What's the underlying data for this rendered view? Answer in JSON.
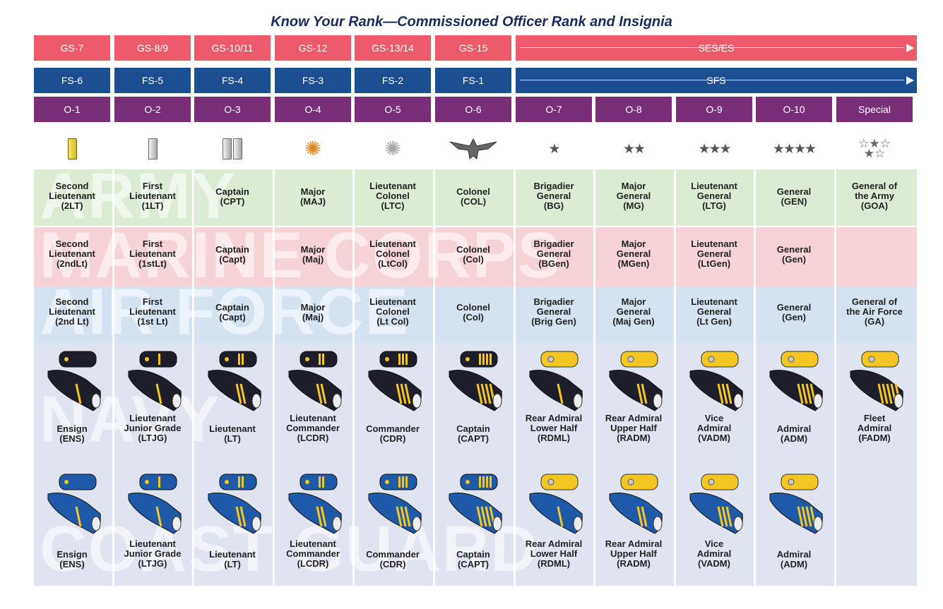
{
  "title": "Know Your Rank—Commissioned Officer Rank and Insignia",
  "gs": [
    "GS-7",
    "GS-8/9",
    "GS-10/11",
    "GS-12",
    "GS-13/14",
    "GS-15"
  ],
  "gs_span": "SES/ES",
  "fs": [
    "FS-6",
    "FS-5",
    "FS-4",
    "FS-3",
    "FS-2",
    "FS-1"
  ],
  "fs_span": "SFS",
  "o": [
    "O-1",
    "O-2",
    "O-3",
    "O-4",
    "O-5",
    "O-6",
    "O-7",
    "O-8",
    "O-9",
    "O-10",
    "Special"
  ],
  "insignia": [
    "gold-bar-icon",
    "silver-bar-icon",
    "double-silver-bar-icon",
    "gold-oak-leaf-icon",
    "silver-oak-leaf-icon",
    "eagle-icon",
    "one-star-icon",
    "two-star-icon",
    "three-star-icon",
    "four-star-icon",
    "five-star-icon"
  ],
  "watermarks": {
    "army": "ARMY",
    "marines": "MARINE CORPS",
    "airforce": "AIR FORCE",
    "navy": "NAVY",
    "coastguard": "COAST GUARD"
  },
  "army": [
    [
      "Second",
      "Lieutenant",
      "(2LT)"
    ],
    [
      "First",
      "Lieutenant",
      "(1LT)"
    ],
    [
      "Captain",
      "(CPT)"
    ],
    [
      "Major",
      "(MAJ)"
    ],
    [
      "Lieutenant",
      "Colonel",
      "(LTC)"
    ],
    [
      "Colonel",
      "(COL)"
    ],
    [
      "Brigadier",
      "General",
      "(BG)"
    ],
    [
      "Major",
      "General",
      "(MG)"
    ],
    [
      "Lieutenant",
      "General",
      "(LTG)"
    ],
    [
      "General",
      "(GEN)"
    ],
    [
      "General of",
      "the Army",
      "(GOA)"
    ]
  ],
  "marines": [
    [
      "Second",
      "Lieutenant",
      "(2ndLt)"
    ],
    [
      "First",
      "Lieutenant",
      "(1stLt)"
    ],
    [
      "Captain",
      "(Capt)"
    ],
    [
      "Major",
      "(Maj)"
    ],
    [
      "Lieutenant",
      "Colonel",
      "(LtCol)"
    ],
    [
      "Colonel",
      "(Col)"
    ],
    [
      "Brigadier",
      "General",
      "(BGen)"
    ],
    [
      "Major",
      "General",
      "(MGen)"
    ],
    [
      "Lieutenant",
      "General",
      "(LtGen)"
    ],
    [
      "General",
      "(Gen)"
    ],
    []
  ],
  "airforce": [
    [
      "Second",
      "Lieutenant",
      "(2nd Lt)"
    ],
    [
      "First",
      "Lieutenant",
      "(1st Lt)"
    ],
    [
      "Captain",
      "(Capt)"
    ],
    [
      "Major",
      "(Maj)"
    ],
    [
      "Lieutenant",
      "Colonel",
      "(Lt Col)"
    ],
    [
      "Colonel",
      "(Col)"
    ],
    [
      "Brigadier",
      "General",
      "(Brig Gen)"
    ],
    [
      "Major",
      "General",
      "(Maj Gen)"
    ],
    [
      "Lieutenant",
      "General",
      "(Lt Gen)"
    ],
    [
      "General",
      "(Gen)"
    ],
    [
      "General of",
      "the Air Force",
      "(GA)"
    ]
  ],
  "navy": [
    [
      "Ensign",
      "(ENS)"
    ],
    [
      "Lieutenant",
      "Junior Grade",
      "(LTJG)"
    ],
    [
      "Lieutenant",
      "(LT)"
    ],
    [
      "Lieutenant",
      "Commander",
      "(LCDR)"
    ],
    [
      "Commander",
      "(CDR)"
    ],
    [
      "Captain",
      "(CAPT)"
    ],
    [
      "Rear Admiral",
      "Lower Half",
      "(RDML)"
    ],
    [
      "Rear Admiral",
      "Upper Half",
      "(RADM)"
    ],
    [
      "Vice",
      "Admiral",
      "(VADM)"
    ],
    [
      "Admiral",
      "(ADM)"
    ],
    [
      "Fleet",
      "Admiral",
      "(FADM)"
    ]
  ],
  "coastguard": [
    [
      "Ensign",
      "(ENS)"
    ],
    [
      "Lieutenant",
      "Junior Grade",
      "(LTJG)"
    ],
    [
      "Lieutenant",
      "(LT)"
    ],
    [
      "Lieutenant",
      "Commander",
      "(LCDR)"
    ],
    [
      "Commander",
      "(CDR)"
    ],
    [
      "Captain",
      "(CAPT)"
    ],
    [
      "Rear Admiral",
      "Lower Half",
      "(RDML)"
    ],
    [
      "Rear Admiral",
      "Upper Half",
      "(RADM)"
    ],
    [
      "Vice",
      "Admiral",
      "(VADM)"
    ],
    [
      "Admiral",
      "(ADM)"
    ],
    []
  ],
  "colors": {
    "gs": "#ec5a6c",
    "fs": "#1c4f91",
    "o": "#7a2e78",
    "army": "#dcebd4",
    "marines": "#f5d3d6",
    "airforce": "#d5e3f1",
    "navy": "#dfe4f0",
    "navy_board": "#1e1e2a",
    "cg_board": "#1f5aa8",
    "gold": "#f3c623"
  }
}
